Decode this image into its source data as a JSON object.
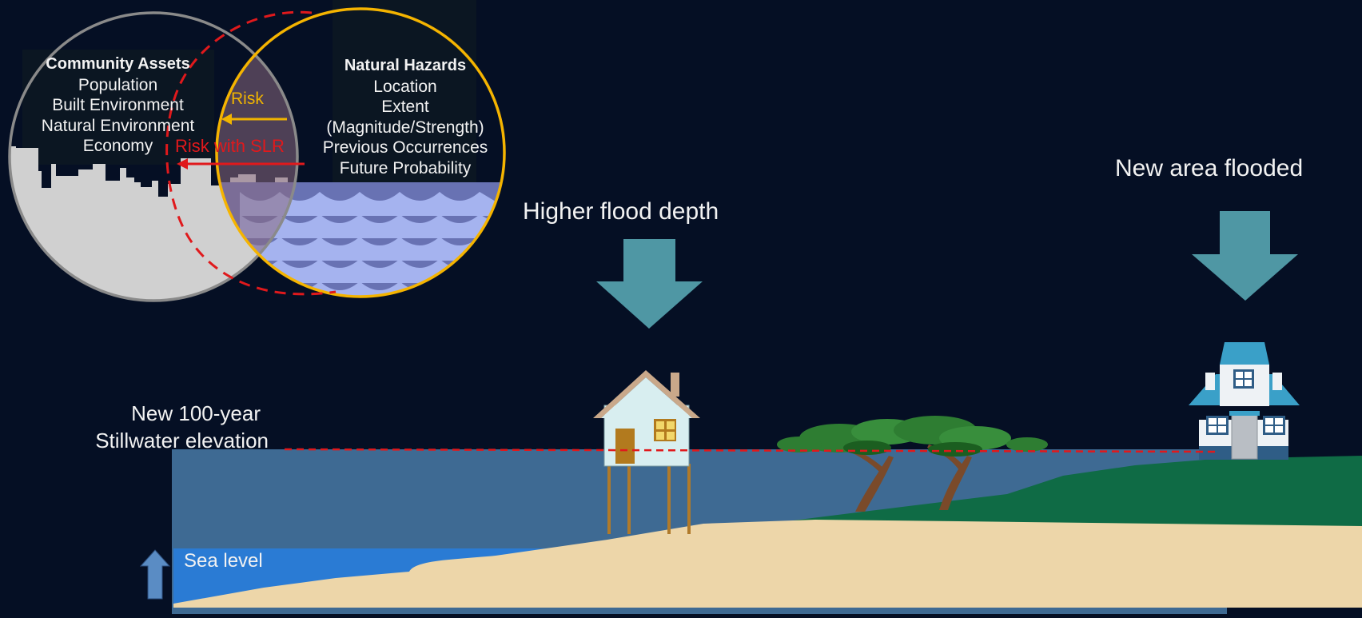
{
  "venn": {
    "assets": {
      "title": "Community Assets",
      "items": [
        "Population",
        "Built Environment",
        "Natural Environment",
        "Economy"
      ]
    },
    "hazards": {
      "title": "Natural Hazards",
      "items": [
        "Location",
        "Extent",
        "(Magnitude/Strength)",
        "Previous Occurrences",
        "Future Probability"
      ]
    },
    "risk_label": "Risk",
    "risk_slr_label": "Risk with SLR"
  },
  "labels": {
    "higher_flood_depth": "Higher flood depth",
    "new_area_flooded": "New area flooded",
    "stillwater_line1": "New 100-year",
    "stillwater_line2": "Stillwater elevation",
    "sea_level": "Sea level"
  },
  "colors": {
    "background": "#050f24",
    "assets_circle": "#8a8a8a",
    "hazards_circle": "#f5b400",
    "risk_arrow": "#f0b400",
    "risk_slr": "#e0191c",
    "flood_arrow": "#4f97a4",
    "flood_water": "#3e6a93",
    "sea": "#2a7bd4",
    "sand": "#edd6a9",
    "grass": "#0f6b45"
  }
}
